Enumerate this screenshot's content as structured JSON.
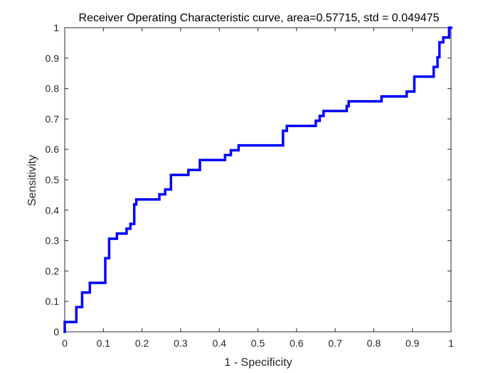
{
  "chart_data": {
    "type": "line",
    "title": "Receiver Operating Characteristic curve, area=0.57715, std = 0.049475",
    "xlabel": "1 - Specificity",
    "ylabel": "Sensitivity",
    "xlim": [
      0,
      1
    ],
    "ylim": [
      0,
      1
    ],
    "xticks": [
      0,
      0.1,
      0.2,
      0.3,
      0.4,
      0.5,
      0.6,
      0.7,
      0.8,
      0.9,
      1
    ],
    "xtick_labels": [
      "0",
      "0.1",
      "0.2",
      "0.3",
      "0.4",
      "0.5",
      "0.6",
      "0.7",
      "0.8",
      "0.9",
      "1"
    ],
    "yticks": [
      0,
      0.1,
      0.2,
      0.3,
      0.4,
      0.5,
      0.6,
      0.7,
      0.8,
      0.9,
      1
    ],
    "ytick_labels": [
      "0",
      "0.1",
      "0.2",
      "0.3",
      "0.4",
      "0.5",
      "0.6",
      "0.7",
      "0.8",
      "0.9",
      "1"
    ],
    "grid": false,
    "box": true,
    "line_color": "#0000ff",
    "series": [
      {
        "x": [
          0,
          0,
          0.03,
          0.03,
          0.045,
          0.045,
          0.065,
          0.065,
          0.105,
          0.105,
          0.115,
          0.115,
          0.135,
          0.135,
          0.16,
          0.16,
          0.17,
          0.17,
          0.18,
          0.18,
          0.185,
          0.185,
          0.245,
          0.245,
          0.26,
          0.26,
          0.275,
          0.275,
          0.32,
          0.32,
          0.35,
          0.35,
          0.415,
          0.415,
          0.43,
          0.43,
          0.45,
          0.45,
          0.565,
          0.565,
          0.575,
          0.575,
          0.65,
          0.65,
          0.66,
          0.66,
          0.67,
          0.67,
          0.73,
          0.73,
          0.735,
          0.735,
          0.82,
          0.82,
          0.885,
          0.885,
          0.905,
          0.905,
          0.955,
          0.955,
          0.965,
          0.965,
          0.97,
          0.97,
          0.98,
          0.98,
          0.995,
          0.995,
          1.0
        ],
        "y": [
          0,
          0.032,
          0.032,
          0.081,
          0.081,
          0.129,
          0.129,
          0.161,
          0.161,
          0.242,
          0.242,
          0.306,
          0.306,
          0.323,
          0.323,
          0.339,
          0.339,
          0.355,
          0.355,
          0.419,
          0.419,
          0.435,
          0.435,
          0.452,
          0.452,
          0.468,
          0.468,
          0.516,
          0.516,
          0.532,
          0.532,
          0.565,
          0.565,
          0.581,
          0.581,
          0.597,
          0.597,
          0.613,
          0.613,
          0.661,
          0.661,
          0.677,
          0.677,
          0.694,
          0.694,
          0.71,
          0.71,
          0.726,
          0.726,
          0.742,
          0.742,
          0.758,
          0.758,
          0.774,
          0.774,
          0.79,
          0.79,
          0.839,
          0.839,
          0.871,
          0.871,
          0.903,
          0.903,
          0.952,
          0.952,
          0.968,
          0.968,
          1.0,
          1.0
        ]
      }
    ]
  }
}
